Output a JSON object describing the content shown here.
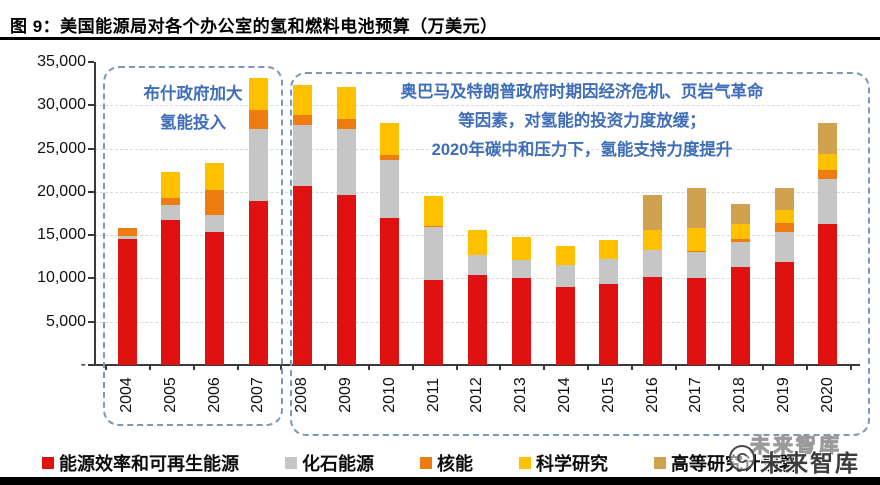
{
  "figure": {
    "title": "图 9：美国能源局对各个办公室的氢和燃料电池预算（万美元）"
  },
  "annotations": {
    "left": {
      "lines": [
        "布什政府加大",
        "氢能投入"
      ]
    },
    "right": {
      "lines": [
        "奥巴马及特朗普政府时期因经济危机、页岩气革命",
        "等因素，对氢能的投资力度放缓；",
        "2020年碳中和压力下，氢能支持力度提升"
      ]
    }
  },
  "legend": {
    "items": [
      {
        "label": "能源效率和可再生能源",
        "color": "#e01111"
      },
      {
        "label": "化石能源",
        "color": "#c6c6c6"
      },
      {
        "label": "核能",
        "color": "#ee7d11"
      },
      {
        "label": "科学研究",
        "color": "#ffc000"
      },
      {
        "label": "高等研究计划署",
        "color": "#d0a24f"
      }
    ]
  },
  "watermark": {
    "outline_text": "未来智库",
    "logo_glyph": "C",
    "text": "未来智库"
  },
  "chart_data": {
    "type": "bar",
    "stacked": true,
    "title": "美国能源局对各个办公室的氢和燃料电池预算（万美元）",
    "unit": "万美元",
    "categories": [
      "2004",
      "2005",
      "2006",
      "2007",
      "2008",
      "2009",
      "2010",
      "2011",
      "2012",
      "2013",
      "2014",
      "2015",
      "2016",
      "2017",
      "2018",
      "2019",
      "2020"
    ],
    "series": [
      {
        "name": "能源效率和可再生能源",
        "color": "#e01111",
        "values": [
          14600,
          16800,
          15400,
          19000,
          20700,
          19600,
          17000,
          9800,
          10400,
          10000,
          9000,
          9400,
          10200,
          10100,
          11300,
          11900,
          16300
        ]
      },
      {
        "name": "化石能源",
        "color": "#c6c6c6",
        "values": [
          300,
          1700,
          1900,
          8300,
          7000,
          7700,
          6700,
          6100,
          2300,
          2100,
          2500,
          2900,
          3100,
          2900,
          2900,
          3500,
          5200
        ]
      },
      {
        "name": "核能",
        "color": "#ee7d11",
        "values": [
          900,
          800,
          2900,
          2100,
          1200,
          1100,
          600,
          200,
          0,
          0,
          0,
          0,
          0,
          200,
          400,
          1000,
          1000
        ]
      },
      {
        "name": "科学研究",
        "color": "#ffc000",
        "values": [
          0,
          3000,
          3100,
          3700,
          3500,
          3700,
          3700,
          3400,
          2900,
          2700,
          2300,
          2100,
          2300,
          2600,
          1700,
          1500,
          1900
        ]
      },
      {
        "name": "高等研究计划署",
        "color": "#d0a24f",
        "values": [
          0,
          0,
          0,
          0,
          0,
          0,
          0,
          0,
          0,
          0,
          0,
          0,
          4000,
          4600,
          2300,
          2500,
          3500
        ]
      }
    ],
    "totals": [
      15800,
      22300,
      23300,
      33100,
      32400,
      32100,
      28000,
      19500,
      15600,
      14800,
      13800,
      14400,
      19600,
      20400,
      18600,
      20400,
      27900
    ],
    "ylim": [
      0,
      35000
    ],
    "ytick_step": 5000,
    "ytick_labels": [
      "-",
      "5,000",
      "10,000",
      "15,000",
      "20,000",
      "25,000",
      "30,000",
      "35,000"
    ],
    "grid": "horizontal-dashed",
    "legend_position": "bottom",
    "xlabel": "",
    "ylabel": ""
  }
}
